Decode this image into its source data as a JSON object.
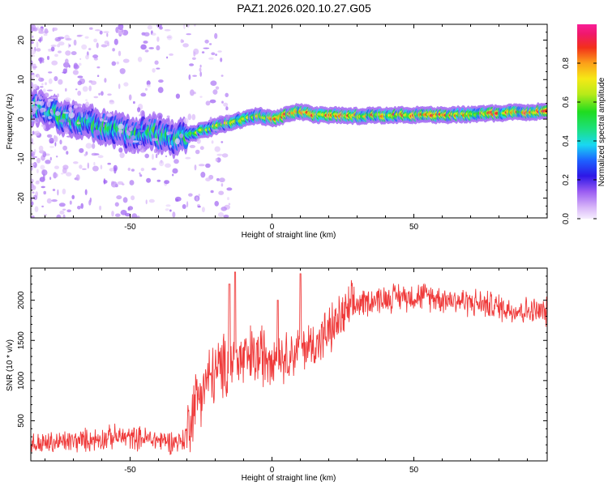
{
  "title": "PAZ1.2026.020.10.27.G05",
  "colors": {
    "snr_line": "#ef3a3a",
    "background_tint": "#f3eafd"
  },
  "chart_data": [
    {
      "type": "heatmap",
      "name": "spectrogram",
      "xlabel": "Height of straight line (km)",
      "ylabel": "Frequency (Hz)",
      "xlim": [
        -85,
        97
      ],
      "ylim": [
        -25,
        24
      ],
      "xticks": [
        -50,
        0,
        50
      ],
      "yticks": [
        -20,
        -10,
        0,
        10,
        20
      ],
      "ridge": {
        "x": [
          -85,
          -80,
          -75,
          -70,
          -65,
          -60,
          -55,
          -50,
          -45,
          -40,
          -35,
          -30,
          -25,
          -20,
          -15,
          -10,
          -5,
          0,
          5,
          10,
          15,
          20,
          30,
          40,
          50,
          60,
          70,
          80,
          90,
          97
        ],
        "y": [
          3,
          2,
          1,
          0,
          -1,
          -2,
          -3,
          -4,
          -3,
          -4,
          -5,
          -4,
          -3,
          -2,
          -1,
          0,
          1,
          0,
          1,
          2,
          1,
          1,
          0.8,
          1,
          1,
          1,
          1.2,
          1.5,
          1.8,
          2
        ]
      },
      "colorbar": {
        "label": "Normalized spectral amplitude",
        "ticks": [
          "0.0",
          "0.2",
          "0.4",
          "0.6",
          "0.8"
        ],
        "range": [
          0,
          1
        ]
      }
    },
    {
      "type": "line",
      "name": "snr",
      "xlabel": "Height of straight line (km)",
      "ylabel": "SNR (10 * v/v)",
      "xlim": [
        -85,
        97
      ],
      "ylim": [
        0,
        2400
      ],
      "xticks": [
        -50,
        0,
        50
      ],
      "yticks": [
        500,
        1000,
        1500,
        2000
      ],
      "envelope": {
        "x": [
          -85,
          -75,
          -65,
          -55,
          -45,
          -35,
          -31,
          -28,
          -25,
          -20,
          -15,
          -10,
          -5,
          0,
          5,
          10,
          15,
          20,
          25,
          30,
          35,
          45,
          55,
          65,
          75,
          85,
          97
        ],
        "y": [
          200,
          230,
          260,
          300,
          280,
          240,
          250,
          650,
          900,
          1100,
          1200,
          1250,
          1300,
          1350,
          1300,
          1400,
          1450,
          1600,
          1800,
          1950,
          2000,
          2050,
          2050,
          2000,
          1950,
          1880,
          1850
        ]
      },
      "spikes": [
        {
          "x": -13,
          "y": 2350
        },
        {
          "x": 10,
          "y": 2330
        },
        {
          "x": -15,
          "y": 2200
        },
        {
          "x": 2,
          "y": 2000
        }
      ]
    }
  ]
}
